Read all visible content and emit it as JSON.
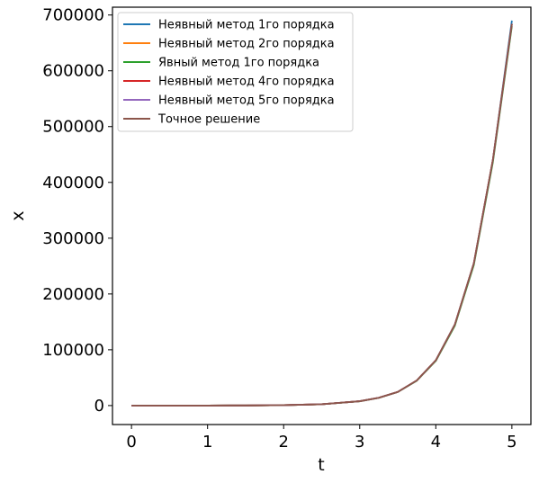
{
  "chart_data": {
    "type": "line",
    "xlabel": "t",
    "ylabel": "x",
    "xlim": [
      -0.25,
      5.25
    ],
    "ylim": [
      -34000,
      714000
    ],
    "xticks": [
      0,
      1,
      2,
      3,
      4,
      5
    ],
    "xtick_labels": [
      "0",
      "1",
      "2",
      "3",
      "4",
      "5"
    ],
    "yticks": [
      0,
      100000,
      200000,
      300000,
      400000,
      500000,
      600000,
      700000
    ],
    "ytick_labels": [
      "0",
      "100000",
      "200000",
      "300000",
      "400000",
      "500000",
      "600000",
      "700000"
    ],
    "legend_position": "top-left",
    "grid": false,
    "x": [
      0,
      0.5,
      1,
      1.5,
      2,
      2.5,
      3,
      3.25,
      3.5,
      3.75,
      4,
      4.25,
      4.5,
      4.75,
      5
    ],
    "series": [
      {
        "name": "Неявный метод 1го порядка",
        "color": "#1f77b4",
        "values": [
          0,
          3,
          40,
          200,
          720,
          2400,
          7800,
          14000,
          24500,
          45000,
          81000,
          145000,
          255000,
          440000,
          690000
        ]
      },
      {
        "name": "Неявный метод 2го порядка",
        "color": "#ff7f0e",
        "values": [
          0,
          3,
          40,
          200,
          720,
          2400,
          7800,
          14000,
          24500,
          45000,
          81000,
          145000,
          255000,
          440000,
          684000
        ]
      },
      {
        "name": "Явный метод 1го порядка",
        "color": "#2ca02c",
        "values": [
          0,
          3,
          40,
          200,
          700,
          2300,
          7600,
          13800,
          24200,
          44500,
          80000,
          143000,
          252000,
          436000,
          680000
        ]
      },
      {
        "name": "Неявный метод 4го порядка",
        "color": "#d62728",
        "values": [
          0,
          3,
          40,
          200,
          720,
          2400,
          7800,
          14000,
          24500,
          45000,
          81000,
          145000,
          255000,
          440000,
          684000
        ]
      },
      {
        "name": "Неявный метод 5го порядка",
        "color": "#9467bd",
        "values": [
          0,
          3,
          40,
          200,
          720,
          2400,
          7800,
          14000,
          24500,
          45000,
          81000,
          145000,
          255000,
          440000,
          684000
        ]
      },
      {
        "name": "Точное решение",
        "color": "#8c564b",
        "values": [
          0,
          3,
          40,
          200,
          720,
          2400,
          7800,
          14000,
          24500,
          45000,
          81000,
          145000,
          255000,
          440000,
          684000
        ]
      }
    ]
  }
}
